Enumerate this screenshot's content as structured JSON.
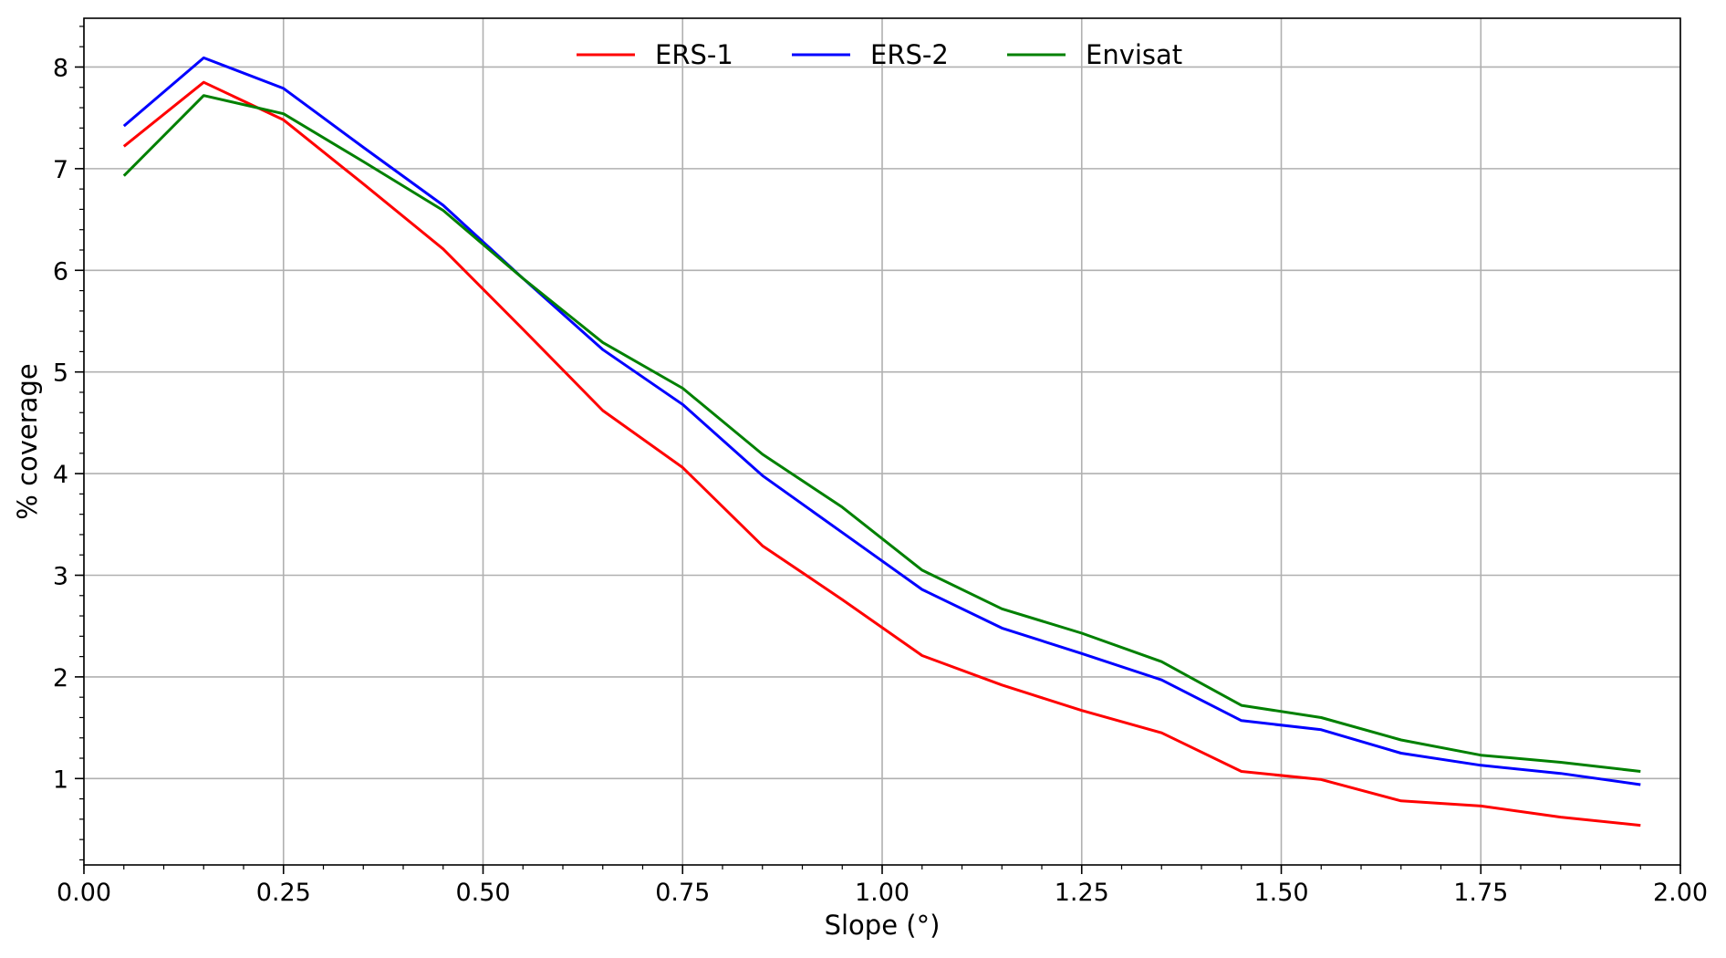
{
  "chart_data": {
    "type": "line",
    "title": "",
    "xlabel": "Slope (°)",
    "ylabel": "% coverage",
    "xlim": [
      0.0,
      2.0
    ],
    "ylim": [
      0.15,
      8.48
    ],
    "xticks": [
      0.0,
      0.25,
      0.5,
      0.75,
      1.0,
      1.25,
      1.5,
      1.75,
      2.0
    ],
    "xtick_labels": [
      "0.00",
      "0.25",
      "0.50",
      "0.75",
      "1.00",
      "1.25",
      "1.50",
      "1.75",
      "2.00"
    ],
    "yticks": [
      1,
      2,
      3,
      4,
      5,
      6,
      7,
      8
    ],
    "ytick_labels": [
      "1",
      "2",
      "3",
      "4",
      "5",
      "6",
      "7",
      "8"
    ],
    "grid": true,
    "legend_position": "top-center",
    "x": [
      0.05,
      0.15,
      0.25,
      0.35,
      0.45,
      0.55,
      0.65,
      0.75,
      0.85,
      0.95,
      1.05,
      1.15,
      1.25,
      1.35,
      1.45,
      1.55,
      1.65,
      1.75,
      1.85,
      1.95
    ],
    "series": [
      {
        "name": "ERS-1",
        "color": "#ff0000",
        "values": [
          7.22,
          7.85,
          7.48,
          6.85,
          6.21,
          5.42,
          4.62,
          4.06,
          3.29,
          2.76,
          2.21,
          1.92,
          1.67,
          1.45,
          1.07,
          0.99,
          0.78,
          0.73,
          0.62,
          0.54
        ]
      },
      {
        "name": "ERS-2",
        "color": "#0000ff",
        "values": [
          7.42,
          8.09,
          7.79,
          7.21,
          6.64,
          5.92,
          5.22,
          4.68,
          3.98,
          3.42,
          2.86,
          2.48,
          2.23,
          1.97,
          1.57,
          1.48,
          1.25,
          1.13,
          1.05,
          0.94
        ]
      },
      {
        "name": "Envisat",
        "color": "#008000",
        "values": [
          6.93,
          7.72,
          7.54,
          7.07,
          6.59,
          5.92,
          5.29,
          4.84,
          4.19,
          3.67,
          3.05,
          2.67,
          2.43,
          2.15,
          1.72,
          1.6,
          1.38,
          1.23,
          1.16,
          1.07
        ]
      }
    ]
  }
}
